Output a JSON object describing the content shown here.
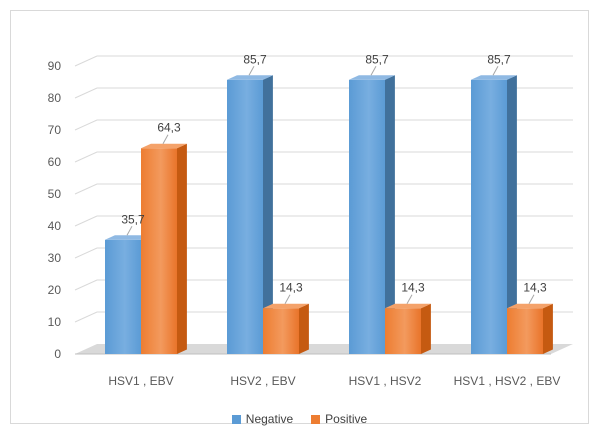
{
  "chart_data": {
    "type": "bar",
    "categories": [
      "HSV1 , EBV",
      "HSV2 , EBV",
      "HSV1 , HSV2",
      "HSV1 , HSV2 , EBV"
    ],
    "series": [
      {
        "name": "Negative",
        "values": [
          35.7,
          85.7,
          85.7,
          85.7
        ],
        "labels": [
          "35,7",
          "85,7",
          "85,7",
          "85,7"
        ],
        "color": "#5B9BD5"
      },
      {
        "name": "Positive",
        "values": [
          64.3,
          14.3,
          14.3,
          14.3
        ],
        "labels": [
          "64,3",
          "14,3",
          "14,3",
          "14,3"
        ],
        "color": "#ED7D31"
      }
    ],
    "y_ticks": [
      0,
      10,
      20,
      30,
      40,
      50,
      60,
      70,
      80,
      90
    ],
    "ylim": [
      0,
      90
    ],
    "grid": true,
    "legend_position": "bottom",
    "style": "3d-clustered-column"
  }
}
